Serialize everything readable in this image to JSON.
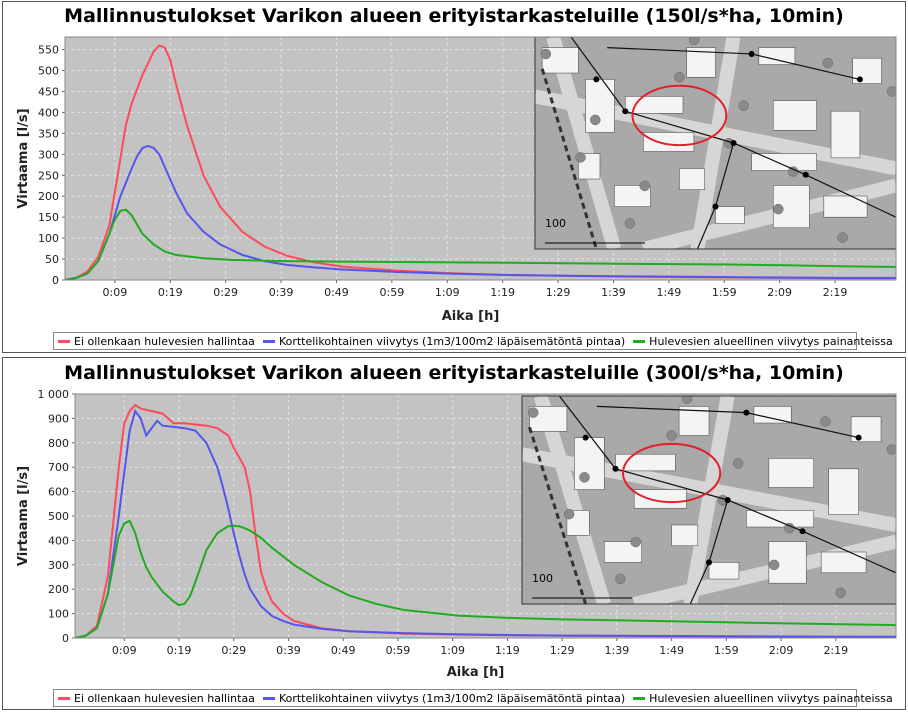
{
  "colors": {
    "series1": "#ff4a5a",
    "series2": "#5555ee",
    "series3": "#22aa22",
    "plot_bg": "#c3c3c3",
    "grid": "#e4e4e4"
  },
  "chart_data": [
    {
      "type": "line",
      "title": "Mallinnustulokset Varikon alueen erityistarkasteluille (150l/s*ha, 10min)",
      "xlabel": "Aika [h]",
      "ylabel": "Virtaama [l/s]",
      "x_unit": "minutes",
      "xlim": [
        0,
        150
      ],
      "ylim": [
        0,
        580
      ],
      "x_ticks": [
        9,
        19,
        29,
        39,
        49,
        59,
        69,
        79,
        89,
        99,
        109,
        119,
        129,
        139
      ],
      "x_tick_labels": [
        "0:09",
        "0:19",
        "0:29",
        "0:39",
        "0:49",
        "0:59",
        "1:09",
        "1:19",
        "1:29",
        "1:39",
        "1:49",
        "1:59",
        "2:09",
        "2:19"
      ],
      "y_ticks": [
        0,
        50,
        100,
        150,
        200,
        250,
        300,
        350,
        400,
        450,
        500,
        550
      ],
      "y_tick_labels": [
        "0",
        "50",
        "100",
        "150",
        "200",
        "250",
        "300",
        "350",
        "400",
        "450",
        "500",
        "550"
      ],
      "legend_position": "bottom",
      "inset": "map-snippet",
      "inset_scale_label": "100",
      "series": [
        {
          "name": "Ei ollenkaan hulevesien hallintaa",
          "x": [
            0,
            2,
            4,
            6,
            8,
            10,
            11,
            12,
            14,
            16,
            17,
            18,
            19,
            20,
            22,
            25,
            28,
            32,
            36,
            40,
            45,
            50,
            60,
            70,
            80,
            90,
            100,
            110,
            120,
            130,
            140,
            150
          ],
          "y": [
            0,
            5,
            20,
            55,
            130,
            290,
            370,
            420,
            490,
            545,
            560,
            555,
            525,
            470,
            370,
            250,
            175,
            115,
            80,
            58,
            42,
            32,
            22,
            16,
            12,
            10,
            8,
            7,
            6,
            5,
            4,
            4
          ]
        },
        {
          "name": "Korttelikohtainen viivytys (1m3/100m2 läpäisemätöntä pintaa)",
          "x": [
            0,
            2,
            4,
            6,
            8,
            10,
            12,
            13,
            14,
            15,
            16,
            17,
            18,
            20,
            22,
            25,
            28,
            32,
            36,
            40,
            45,
            50,
            60,
            70,
            80,
            90,
            100,
            110,
            120,
            130,
            140,
            150
          ],
          "y": [
            0,
            5,
            15,
            45,
            110,
            200,
            265,
            295,
            315,
            320,
            315,
            300,
            270,
            210,
            160,
            115,
            85,
            60,
            45,
            36,
            30,
            25,
            19,
            15,
            12,
            10,
            9,
            8,
            7,
            6,
            5,
            5
          ]
        },
        {
          "name": "Hulevesien alueellinen viivytys painanteissa",
          "x": [
            0,
            2,
            4,
            6,
            8,
            9,
            10,
            11,
            12,
            14,
            16,
            18,
            20,
            25,
            30,
            40,
            50,
            60,
            70,
            80,
            90,
            100,
            110,
            120,
            130,
            140,
            150
          ],
          "y": [
            0,
            5,
            15,
            45,
            110,
            145,
            165,
            168,
            155,
            110,
            85,
            68,
            60,
            52,
            48,
            45,
            44,
            43,
            42,
            41,
            40,
            39,
            38,
            37,
            35,
            33,
            31
          ]
        }
      ]
    },
    {
      "type": "line",
      "title": "Mallinnustulokset Varikon alueen erityistarkasteluille (300l/s*ha, 10min)",
      "xlabel": "Aika [h]",
      "ylabel": "Virtaama [l/s]",
      "x_unit": "minutes",
      "xlim": [
        0,
        150
      ],
      "ylim": [
        0,
        1000
      ],
      "x_ticks": [
        9,
        19,
        29,
        39,
        49,
        59,
        69,
        79,
        89,
        99,
        109,
        119,
        129,
        139
      ],
      "x_tick_labels": [
        "0:09",
        "0:19",
        "0:29",
        "0:39",
        "0:49",
        "0:59",
        "1:09",
        "1:19",
        "1:29",
        "1:39",
        "1:49",
        "1:59",
        "2:09",
        "2:19"
      ],
      "y_ticks": [
        0,
        100,
        200,
        300,
        400,
        500,
        600,
        700,
        800,
        900,
        1000
      ],
      "y_tick_labels": [
        "0",
        "100",
        "200",
        "300",
        "400",
        "500",
        "600",
        "700",
        "800",
        "900",
        "1 000"
      ],
      "legend_position": "bottom",
      "inset": "map-snippet",
      "inset_scale_label": "100",
      "series": [
        {
          "name": "Ei ollenkaan hulevesien hallintaa",
          "x": [
            0,
            2,
            4,
            6,
            8,
            9,
            10,
            11,
            12,
            14,
            16,
            18,
            20,
            22,
            24,
            26,
            28,
            29,
            30,
            31,
            32,
            33,
            34,
            35,
            36,
            38,
            40,
            45,
            50,
            60,
            70,
            80,
            90,
            100,
            110,
            120,
            130,
            140,
            150
          ],
          "y": [
            0,
            10,
            50,
            250,
            700,
            880,
            930,
            955,
            940,
            930,
            920,
            880,
            880,
            875,
            870,
            860,
            830,
            780,
            740,
            700,
            600,
            420,
            270,
            200,
            150,
            100,
            70,
            40,
            28,
            18,
            14,
            11,
            9,
            8,
            7,
            6,
            5,
            5,
            4
          ]
        },
        {
          "name": "Korttelikohtainen viivytys (1m3/100m2 läpäisemätöntä pintaa)",
          "x": [
            0,
            2,
            4,
            6,
            8,
            9,
            10,
            11,
            12,
            13,
            14,
            15,
            16,
            18,
            20,
            22,
            24,
            25,
            26,
            27,
            28,
            29,
            30,
            31,
            32,
            34,
            36,
            38,
            40,
            45,
            50,
            60,
            70,
            80,
            90,
            100,
            110,
            120,
            130,
            140,
            150
          ],
          "y": [
            0,
            10,
            40,
            180,
            500,
            680,
            850,
            930,
            900,
            830,
            860,
            890,
            870,
            865,
            860,
            850,
            800,
            750,
            700,
            620,
            530,
            430,
            340,
            260,
            200,
            130,
            90,
            70,
            55,
            38,
            28,
            20,
            15,
            12,
            10,
            9,
            8,
            7,
            6,
            5,
            5
          ]
        },
        {
          "name": "Hulevesien alueellinen viivytys painanteissa",
          "x": [
            0,
            2,
            4,
            6,
            8,
            9,
            10,
            11,
            12,
            13,
            14,
            16,
            18,
            19,
            20,
            21,
            22,
            24,
            26,
            28,
            29,
            30,
            31,
            32,
            34,
            36,
            40,
            45,
            50,
            55,
            60,
            70,
            80,
            90,
            100,
            110,
            120,
            130,
            140,
            150
          ],
          "y": [
            0,
            10,
            40,
            180,
            420,
            470,
            480,
            430,
            350,
            290,
            250,
            190,
            150,
            135,
            140,
            170,
            230,
            360,
            430,
            458,
            460,
            458,
            450,
            440,
            410,
            370,
            300,
            230,
            175,
            140,
            115,
            92,
            82,
            76,
            72,
            68,
            64,
            60,
            56,
            53
          ]
        }
      ]
    }
  ]
}
